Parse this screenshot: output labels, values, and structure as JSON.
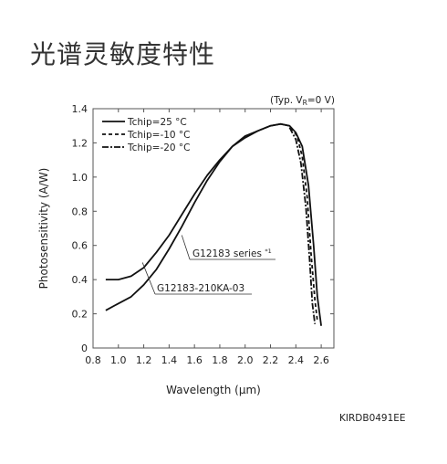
{
  "page": {
    "title": "光谱灵敏度特性",
    "figure_code": "KIRDB0491EE"
  },
  "chart_data": {
    "type": "line",
    "condition_label": "(Typ. VR=0 V)",
    "condition_prefix": "(Typ. V",
    "condition_sub": "R",
    "condition_suffix": "=0 V)",
    "xlabel": "Wavelength (μm)",
    "ylabel": "Photosensitivity (A/W)",
    "xlim": [
      0.8,
      2.7
    ],
    "ylim": [
      0,
      1.4
    ],
    "xticks": [
      0.8,
      1.0,
      1.2,
      1.4,
      1.6,
      1.8,
      2.0,
      2.2,
      2.4,
      2.6
    ],
    "yticks": [
      0,
      0.2,
      0.4,
      0.6,
      0.8,
      1.0,
      1.2,
      1.4
    ],
    "xtick_labels": [
      "0.8",
      "1.0",
      "1.2",
      "1.4",
      "1.6",
      "1.8",
      "2.0",
      "2.2",
      "2.4",
      "2.6"
    ],
    "ytick_labels": [
      "0",
      "0.2",
      "0.4",
      "0.6",
      "0.8",
      "1.0",
      "1.2",
      "1.4"
    ],
    "legend_position": "top-left",
    "series": [
      {
        "name": "Tchip=25 °C",
        "style": "solid",
        "product": "G12183 series",
        "points": [
          [
            0.9,
            0.4
          ],
          [
            1.0,
            0.4
          ],
          [
            1.1,
            0.42
          ],
          [
            1.2,
            0.47
          ],
          [
            1.3,
            0.56
          ],
          [
            1.4,
            0.66
          ],
          [
            1.5,
            0.78
          ],
          [
            1.6,
            0.9
          ],
          [
            1.7,
            1.01
          ],
          [
            1.8,
            1.1
          ],
          [
            1.9,
            1.18
          ],
          [
            2.0,
            1.23
          ],
          [
            2.1,
            1.27
          ],
          [
            2.2,
            1.3
          ],
          [
            2.28,
            1.31
          ],
          [
            2.35,
            1.3
          ],
          [
            2.4,
            1.26
          ],
          [
            2.45,
            1.18
          ],
          [
            2.5,
            0.95
          ],
          [
            2.54,
            0.6
          ],
          [
            2.57,
            0.3
          ],
          [
            2.6,
            0.13
          ]
        ]
      },
      {
        "name": "Tchip=-10 °C",
        "style": "dashed",
        "product": "G12183 series",
        "points": [
          [
            2.36,
            1.29
          ],
          [
            2.41,
            1.24
          ],
          [
            2.45,
            1.12
          ],
          [
            2.49,
            0.88
          ],
          [
            2.52,
            0.55
          ],
          [
            2.55,
            0.28
          ],
          [
            2.57,
            0.16
          ]
        ]
      },
      {
        "name": "Tchip=-20 °C",
        "style": "dashdot",
        "product": "G12183 series",
        "points": [
          [
            2.35,
            1.29
          ],
          [
            2.4,
            1.22
          ],
          [
            2.44,
            1.08
          ],
          [
            2.48,
            0.82
          ],
          [
            2.51,
            0.5
          ],
          [
            2.53,
            0.26
          ],
          [
            2.55,
            0.14
          ]
        ]
      },
      {
        "name": "",
        "style": "solid",
        "product": "G12183-210KA-03",
        "points": [
          [
            0.9,
            0.22
          ],
          [
            1.0,
            0.26
          ],
          [
            1.1,
            0.3
          ],
          [
            1.2,
            0.37
          ],
          [
            1.3,
            0.46
          ],
          [
            1.4,
            0.58
          ],
          [
            1.5,
            0.71
          ],
          [
            1.6,
            0.85
          ],
          [
            1.7,
            0.98
          ],
          [
            1.8,
            1.09
          ],
          [
            1.9,
            1.18
          ],
          [
            2.0,
            1.24
          ],
          [
            2.1,
            1.27
          ],
          [
            2.2,
            1.3
          ],
          [
            2.28,
            1.31
          ],
          [
            2.35,
            1.3
          ]
        ]
      }
    ],
    "annotations": [
      {
        "text": "G12183 series",
        "superscript": "*1",
        "target_x": 1.5,
        "target_y": 0.66
      },
      {
        "text": "G12183-210KA-03",
        "target_x": 1.19,
        "target_y": 0.5
      }
    ]
  }
}
